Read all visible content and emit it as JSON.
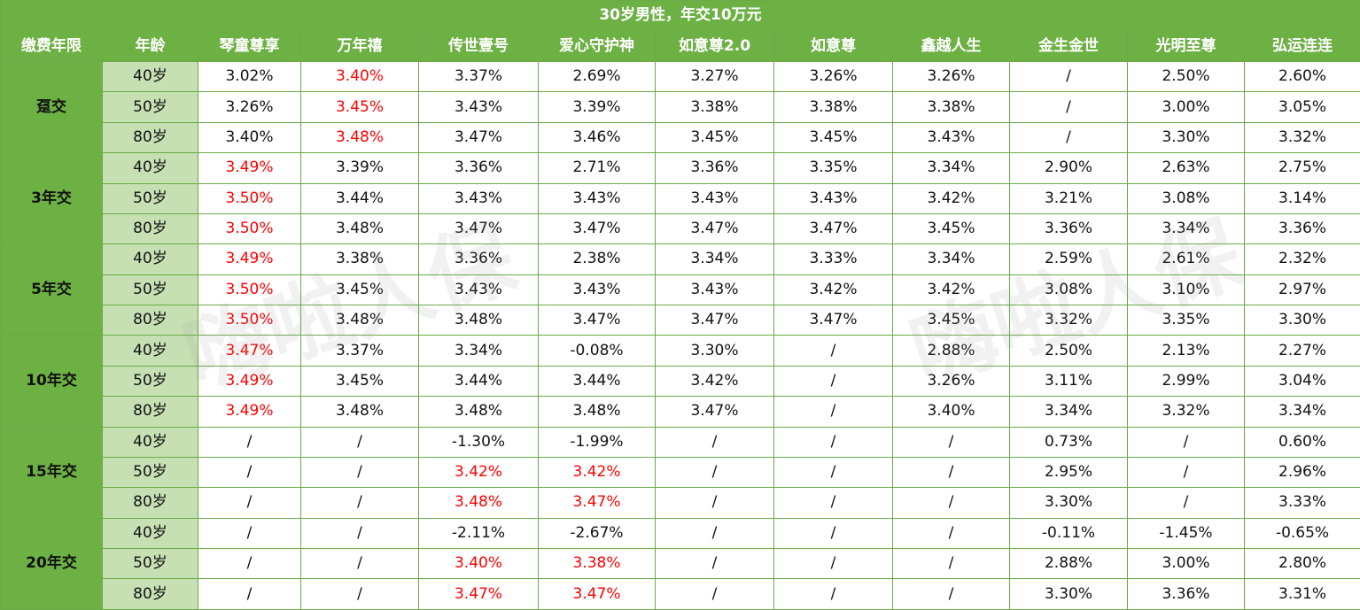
{
  "title": "30岁男性，年交10万元",
  "headers": [
    "缴费年限",
    "年龄",
    "琴童尊享",
    "万年禧",
    "传世壹号",
    "爱心守护神",
    "如意尊2.0",
    "如意尊",
    "鑫越人生",
    "金生金世",
    "光明至尊",
    "弘运连连"
  ],
  "watermark": "嗨啦人保",
  "highlight_color": "#ff0000",
  "groups": [
    {
      "period": "趸交",
      "rows": [
        {
          "age": "40岁",
          "values": [
            "3.02%",
            "3.40%",
            "3.37%",
            "2.69%",
            "3.27%",
            "3.26%",
            "3.26%",
            "/",
            "2.50%",
            "2.60%"
          ],
          "red": [
            1
          ]
        },
        {
          "age": "50岁",
          "values": [
            "3.26%",
            "3.45%",
            "3.43%",
            "3.39%",
            "3.38%",
            "3.38%",
            "3.38%",
            "/",
            "3.00%",
            "3.05%"
          ],
          "red": [
            1
          ]
        },
        {
          "age": "80岁",
          "values": [
            "3.40%",
            "3.48%",
            "3.47%",
            "3.46%",
            "3.45%",
            "3.45%",
            "3.43%",
            "/",
            "3.30%",
            "3.32%"
          ],
          "red": [
            1
          ]
        }
      ]
    },
    {
      "period": "3年交",
      "rows": [
        {
          "age": "40岁",
          "values": [
            "3.49%",
            "3.39%",
            "3.36%",
            "2.71%",
            "3.36%",
            "3.35%",
            "3.34%",
            "2.90%",
            "2.63%",
            "2.75%"
          ],
          "red": [
            0
          ]
        },
        {
          "age": "50岁",
          "values": [
            "3.50%",
            "3.44%",
            "3.43%",
            "3.43%",
            "3.43%",
            "3.43%",
            "3.42%",
            "3.21%",
            "3.08%",
            "3.14%"
          ],
          "red": [
            0
          ]
        },
        {
          "age": "80岁",
          "values": [
            "3.50%",
            "3.48%",
            "3.47%",
            "3.47%",
            "3.47%",
            "3.47%",
            "3.45%",
            "3.36%",
            "3.34%",
            "3.36%"
          ],
          "red": [
            0
          ]
        }
      ]
    },
    {
      "period": "5年交",
      "rows": [
        {
          "age": "40岁",
          "values": [
            "3.49%",
            "3.38%",
            "3.36%",
            "2.38%",
            "3.34%",
            "3.33%",
            "3.34%",
            "2.59%",
            "2.61%",
            "2.32%"
          ],
          "red": [
            0
          ]
        },
        {
          "age": "50岁",
          "values": [
            "3.50%",
            "3.45%",
            "3.43%",
            "3.43%",
            "3.43%",
            "3.42%",
            "3.42%",
            "3.08%",
            "3.10%",
            "2.97%"
          ],
          "red": [
            0
          ]
        },
        {
          "age": "80岁",
          "values": [
            "3.50%",
            "3.48%",
            "3.48%",
            "3.47%",
            "3.47%",
            "3.47%",
            "3.45%",
            "3.32%",
            "3.35%",
            "3.30%"
          ],
          "red": [
            0
          ]
        }
      ]
    },
    {
      "period": "10年交",
      "rows": [
        {
          "age": "40岁",
          "values": [
            "3.47%",
            "3.37%",
            "3.34%",
            "-0.08%",
            "3.30%",
            "/",
            "2.88%",
            "2.50%",
            "2.13%",
            "2.27%"
          ],
          "red": [
            0
          ]
        },
        {
          "age": "50岁",
          "values": [
            "3.49%",
            "3.45%",
            "3.44%",
            "3.44%",
            "3.42%",
            "/",
            "3.26%",
            "3.11%",
            "2.99%",
            "3.04%"
          ],
          "red": [
            0
          ]
        },
        {
          "age": "80岁",
          "values": [
            "3.49%",
            "3.48%",
            "3.48%",
            "3.48%",
            "3.47%",
            "/",
            "3.40%",
            "3.34%",
            "3.32%",
            "3.34%"
          ],
          "red": [
            0
          ]
        }
      ]
    },
    {
      "period": "15年交",
      "rows": [
        {
          "age": "40岁",
          "values": [
            "/",
            "/",
            "-1.30%",
            "-1.99%",
            "/",
            "/",
            "/",
            "0.73%",
            "/",
            "0.60%"
          ],
          "red": []
        },
        {
          "age": "50岁",
          "values": [
            "/",
            "/",
            "3.42%",
            "3.42%",
            "/",
            "/",
            "/",
            "2.95%",
            "/",
            "2.96%"
          ],
          "red": [
            2,
            3
          ]
        },
        {
          "age": "80岁",
          "values": [
            "/",
            "/",
            "3.48%",
            "3.47%",
            "/",
            "/",
            "/",
            "3.30%",
            "/",
            "3.33%"
          ],
          "red": [
            2,
            3
          ]
        }
      ]
    },
    {
      "period": "20年交",
      "rows": [
        {
          "age": "40岁",
          "values": [
            "/",
            "/",
            "-2.11%",
            "-2.67%",
            "/",
            "/",
            "/",
            "-0.11%",
            "-1.45%",
            "-0.65%"
          ],
          "red": []
        },
        {
          "age": "50岁",
          "values": [
            "/",
            "/",
            "3.40%",
            "3.38%",
            "/",
            "/",
            "/",
            "2.88%",
            "3.00%",
            "2.80%"
          ],
          "red": [
            2,
            3
          ]
        },
        {
          "age": "80岁",
          "values": [
            "/",
            "/",
            "3.47%",
            "3.47%",
            "/",
            "/",
            "/",
            "3.30%",
            "3.36%",
            "3.31%"
          ],
          "red": [
            2,
            3
          ]
        }
      ]
    }
  ]
}
